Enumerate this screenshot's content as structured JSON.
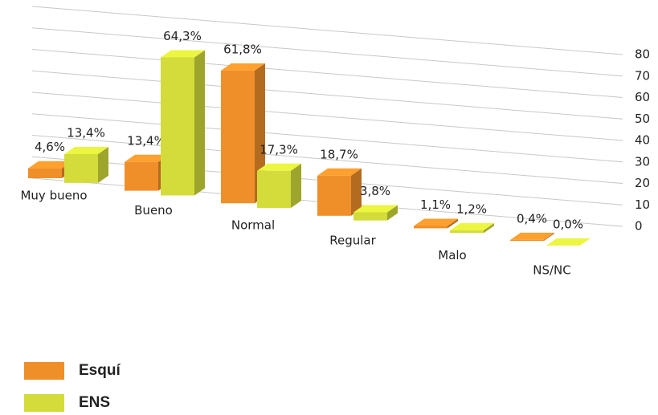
{
  "chart_data": {
    "type": "bar3d",
    "categories": [
      "Muy bueno",
      "Bueno",
      "Normal",
      "Regular",
      "Malo",
      "NS/NC"
    ],
    "series": [
      {
        "name": "Esquí",
        "color": "#ef8f2a",
        "values": [
          4.6,
          13.4,
          61.8,
          18.7,
          1.1,
          0.4
        ],
        "value_labels": [
          "4,6%",
          "13,4%",
          "61,8%",
          "18,7%",
          "1,1%",
          "0,4%"
        ]
      },
      {
        "name": "ENS",
        "color": "#d3dc3a",
        "values": [
          13.4,
          64.3,
          17.3,
          3.8,
          1.2,
          0.0
        ],
        "value_labels": [
          "13,4%",
          "64,3%",
          "17,3%",
          "3,8%",
          "1,2%",
          "0,0%"
        ]
      }
    ],
    "ylim": [
      0,
      80
    ],
    "yticks": [
      0,
      10,
      20,
      30,
      40,
      50,
      60,
      70,
      80
    ],
    "grid": true,
    "legend": "bottom-left"
  }
}
